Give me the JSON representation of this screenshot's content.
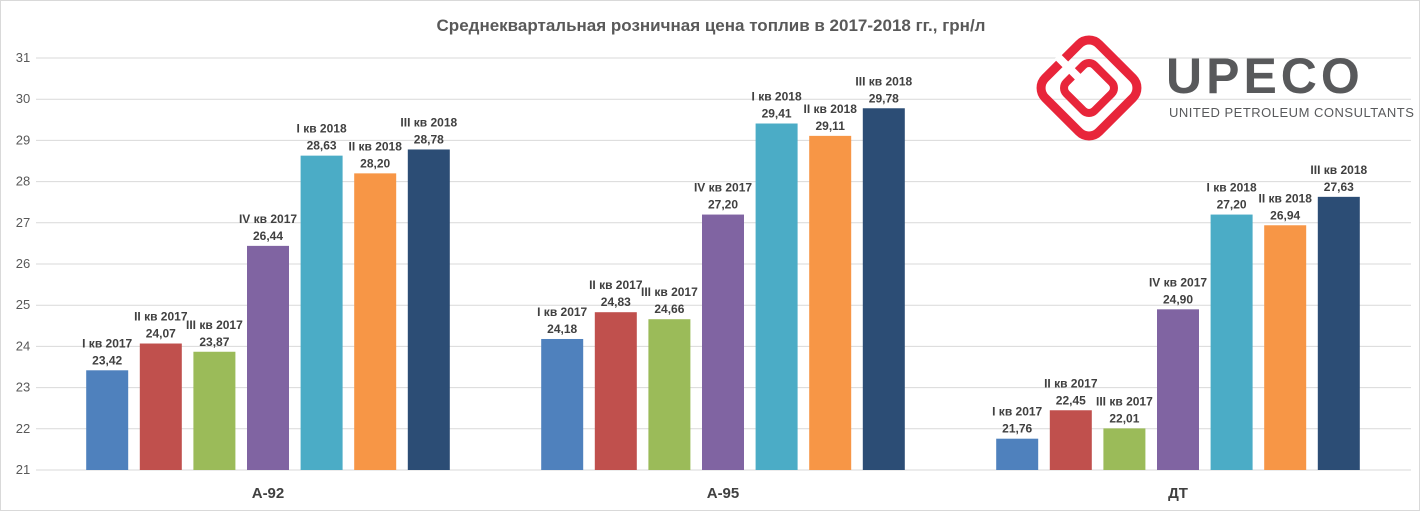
{
  "chart_data": {
    "type": "bar",
    "title": "Среднеквартальная розничная цена топлив в 2017-2018 гг., грн/л",
    "xlabel": "",
    "ylabel": "",
    "ylim": [
      21,
      31
    ],
    "yticks": [
      "21",
      "22",
      "23",
      "24",
      "25",
      "26",
      "27",
      "28",
      "29",
      "30",
      "31"
    ],
    "grid": true,
    "categories": [
      "А-92",
      "А-95",
      "ДТ"
    ],
    "series": [
      {
        "name": "I кв 2017",
        "color": "#4f81bd",
        "values": [
          23.42,
          24.18,
          21.76
        ],
        "labels": [
          "23,42",
          "24,18",
          "21,76"
        ]
      },
      {
        "name": "II кв 2017",
        "color": "#c0504d",
        "values": [
          24.07,
          24.83,
          22.45
        ],
        "labels": [
          "24,07",
          "24,83",
          "22,45"
        ]
      },
      {
        "name": "III кв 2017",
        "color": "#9bbb59",
        "values": [
          23.87,
          24.66,
          22.01
        ],
        "labels": [
          "23,87",
          "24,66",
          "22,01"
        ]
      },
      {
        "name": "IV кв 2017",
        "color": "#8064a2",
        "values": [
          26.44,
          27.2,
          24.9
        ],
        "labels": [
          "26,44",
          "27,20",
          "24,90"
        ]
      },
      {
        "name": "I кв 2018",
        "color": "#4bacc6",
        "values": [
          28.63,
          29.41,
          27.2
        ],
        "labels": [
          "28,63",
          "29,41",
          "27,20"
        ]
      },
      {
        "name": "II кв 2018",
        "color": "#f79646",
        "values": [
          28.2,
          29.11,
          26.94
        ],
        "labels": [
          "28,20",
          "29,11",
          "26,94"
        ]
      },
      {
        "name": "III кв 2018",
        "color": "#2c4d75",
        "values": [
          28.78,
          29.78,
          27.63
        ],
        "labels": [
          "28,78",
          "29,78",
          "27,63"
        ]
      }
    ]
  },
  "logo": {
    "name": "UPECO",
    "subtitle": "UNITED PETROLEUM CONSULTANTS",
    "color": "#e8253a"
  }
}
